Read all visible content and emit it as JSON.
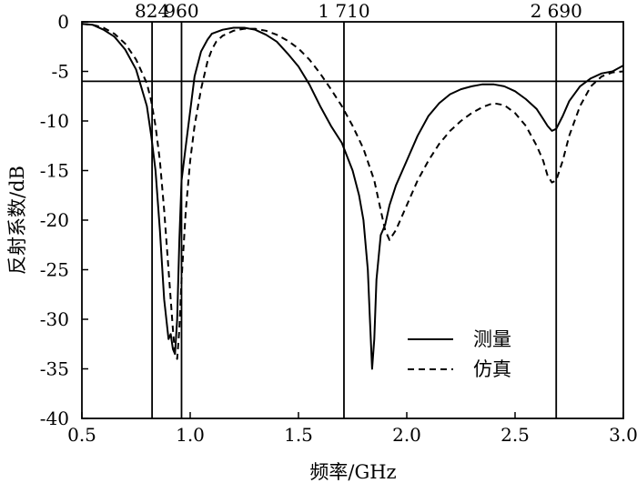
{
  "chart_data": {
    "type": "line",
    "xlabel": "频率/GHz",
    "ylabel": "反射系数/dB",
    "xlim": [
      0.5,
      3.0
    ],
    "ylim": [
      -40,
      0
    ],
    "xticks": [
      "0.5",
      "1.0",
      "1.5",
      "2.0",
      "2.5",
      "3.0"
    ],
    "xtick_values": [
      0.5,
      1.0,
      1.5,
      2.0,
      2.5,
      3.0
    ],
    "yticks": [
      "0",
      "-5",
      "-10",
      "-15",
      "-20",
      "-25",
      "-30",
      "-35",
      "-40"
    ],
    "ytick_values": [
      0,
      -5,
      -10,
      -15,
      -20,
      -25,
      -30,
      -35,
      -40
    ],
    "grid": false,
    "legend_position": "bottom-right",
    "reference_vlines": [
      {
        "label": "824",
        "x": 0.824
      },
      {
        "label": "960",
        "x": 0.96
      },
      {
        "label": "1 710",
        "x": 1.71
      },
      {
        "label": "2 690",
        "x": 2.69
      }
    ],
    "reference_hline": {
      "y": -6
    },
    "series": [
      {
        "name": "测量",
        "style": "solid",
        "color": "#000000",
        "x": [
          0.5,
          0.55,
          0.6,
          0.65,
          0.7,
          0.75,
          0.8,
          0.82,
          0.84,
          0.86,
          0.88,
          0.9,
          0.91,
          0.92,
          0.93,
          0.94,
          0.95,
          0.96,
          0.98,
          1.0,
          1.02,
          1.05,
          1.08,
          1.1,
          1.15,
          1.2,
          1.25,
          1.3,
          1.35,
          1.4,
          1.45,
          1.5,
          1.55,
          1.6,
          1.65,
          1.7,
          1.75,
          1.78,
          1.8,
          1.82,
          1.83,
          1.84,
          1.85,
          1.86,
          1.88,
          1.9,
          1.92,
          1.95,
          2.0,
          2.05,
          2.1,
          2.15,
          2.2,
          2.25,
          2.3,
          2.35,
          2.4,
          2.45,
          2.5,
          2.55,
          2.6,
          2.63,
          2.65,
          2.67,
          2.69,
          2.72,
          2.75,
          2.8,
          2.85,
          2.9,
          2.95,
          3.0
        ],
        "y": [
          -0.2,
          -0.3,
          -0.8,
          -1.5,
          -2.8,
          -4.8,
          -8.5,
          -11.5,
          -15,
          -21,
          -28,
          -32,
          -31.5,
          -33,
          -33.5,
          -30,
          -22,
          -16,
          -12.5,
          -9,
          -5.5,
          -3,
          -1.8,
          -1.2,
          -0.8,
          -0.6,
          -0.6,
          -0.8,
          -1.3,
          -2,
          -3.2,
          -4.5,
          -6.3,
          -8.5,
          -10.5,
          -12.2,
          -15,
          -17.5,
          -20,
          -25,
          -30,
          -35,
          -32,
          -26,
          -21.5,
          -20.5,
          -18.5,
          -16.5,
          -14,
          -11.5,
          -9.5,
          -8.2,
          -7.3,
          -6.8,
          -6.5,
          -6.3,
          -6.3,
          -6.5,
          -7,
          -7.8,
          -8.8,
          -9.8,
          -10.5,
          -11,
          -10.8,
          -9.5,
          -8,
          -6.5,
          -5.7,
          -5.2,
          -5,
          -4.4
        ]
      },
      {
        "name": "仿真",
        "style": "dashed",
        "color": "#000000",
        "x": [
          0.5,
          0.55,
          0.6,
          0.65,
          0.7,
          0.75,
          0.8,
          0.82,
          0.84,
          0.86,
          0.88,
          0.9,
          0.92,
          0.93,
          0.94,
          0.95,
          0.96,
          0.98,
          1.0,
          1.02,
          1.05,
          1.08,
          1.1,
          1.12,
          1.15,
          1.2,
          1.25,
          1.3,
          1.35,
          1.4,
          1.45,
          1.5,
          1.55,
          1.6,
          1.65,
          1.7,
          1.75,
          1.8,
          1.85,
          1.88,
          1.9,
          1.92,
          1.95,
          2.0,
          2.05,
          2.1,
          2.15,
          2.2,
          2.25,
          2.3,
          2.35,
          2.4,
          2.45,
          2.5,
          2.55,
          2.6,
          2.63,
          2.65,
          2.67,
          2.69,
          2.72,
          2.75,
          2.8,
          2.85,
          2.9,
          2.95,
          3.0
        ],
        "y": [
          -0.2,
          -0.3,
          -0.6,
          -1.2,
          -2.2,
          -3.8,
          -6.2,
          -8,
          -10.5,
          -14,
          -19,
          -25,
          -31,
          -33.5,
          -34,
          -31,
          -26,
          -19,
          -14,
          -10.5,
          -6.8,
          -4,
          -2.8,
          -2,
          -1.4,
          -0.9,
          -0.7,
          -0.7,
          -0.9,
          -1.3,
          -1.9,
          -2.7,
          -3.8,
          -5.2,
          -6.8,
          -8.5,
          -10.5,
          -12.8,
          -16,
          -19,
          -21,
          -22,
          -21,
          -18.5,
          -16,
          -14,
          -12.3,
          -11,
          -10,
          -9.2,
          -8.6,
          -8.2,
          -8.4,
          -9.2,
          -10.5,
          -12.5,
          -14,
          -15.5,
          -16.2,
          -16,
          -14,
          -11.5,
          -8.5,
          -6.5,
          -5.5,
          -5.1,
          -5
        ]
      }
    ]
  }
}
